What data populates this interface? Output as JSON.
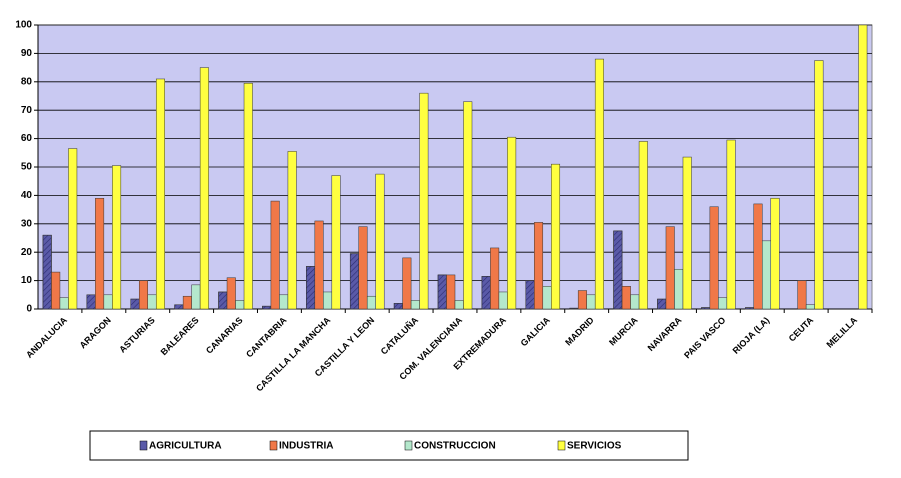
{
  "chart_data": {
    "type": "bar",
    "categories": [
      "ANDALUCIA",
      "ARAGON",
      "ASTURIAS",
      "BALEARES",
      "CANARIAS",
      "CANTABRIA",
      "CASTILLA LA MANCHA",
      "CASTILLA Y LEON",
      "CATALUÑA",
      "COM. VALENCIANA",
      "EXTREMADURA",
      "GALICIA",
      "MADRID",
      "MURCIA",
      "NAVARRA",
      "PAIS VASCO",
      "RIOJA (LA)",
      "CEUTA",
      "MELILLA"
    ],
    "series": [
      {
        "name": "AGRICULTURA",
        "color": "#5a5aa8",
        "values": [
          26,
          5,
          3.5,
          1.5,
          6,
          1,
          15,
          19.5,
          2,
          12,
          11.5,
          10,
          0.3,
          27.5,
          3.5,
          0.5,
          0.5,
          0,
          0
        ]
      },
      {
        "name": "INDUSTRIA",
        "color": "#f07848",
        "values": [
          13,
          39,
          10,
          4.5,
          11,
          38,
          31,
          29,
          18,
          12,
          21.5,
          30.5,
          6.5,
          8,
          29,
          36,
          37,
          10,
          0
        ]
      },
      {
        "name": "CONSTRUCCION",
        "color": "#b4e8cc",
        "values": [
          4,
          5,
          5,
          8.5,
          3,
          5,
          6,
          4.5,
          3,
          3,
          6,
          8,
          5,
          5,
          14,
          4,
          24,
          1.5,
          0
        ]
      },
      {
        "name": "SERVICIOS",
        "color": "#ffff40",
        "values": [
          56.5,
          50.5,
          81,
          85,
          79.5,
          55.5,
          47,
          47.5,
          76,
          73,
          60.5,
          51,
          88,
          59,
          53.5,
          59.5,
          39,
          87.5,
          100
        ]
      }
    ],
    "ylim": [
      0,
      100
    ],
    "yticks": [
      0,
      10,
      20,
      30,
      40,
      50,
      60,
      70,
      80,
      90,
      100
    ],
    "grid": true,
    "legend": "bottom",
    "background": "#c9c9f2"
  }
}
